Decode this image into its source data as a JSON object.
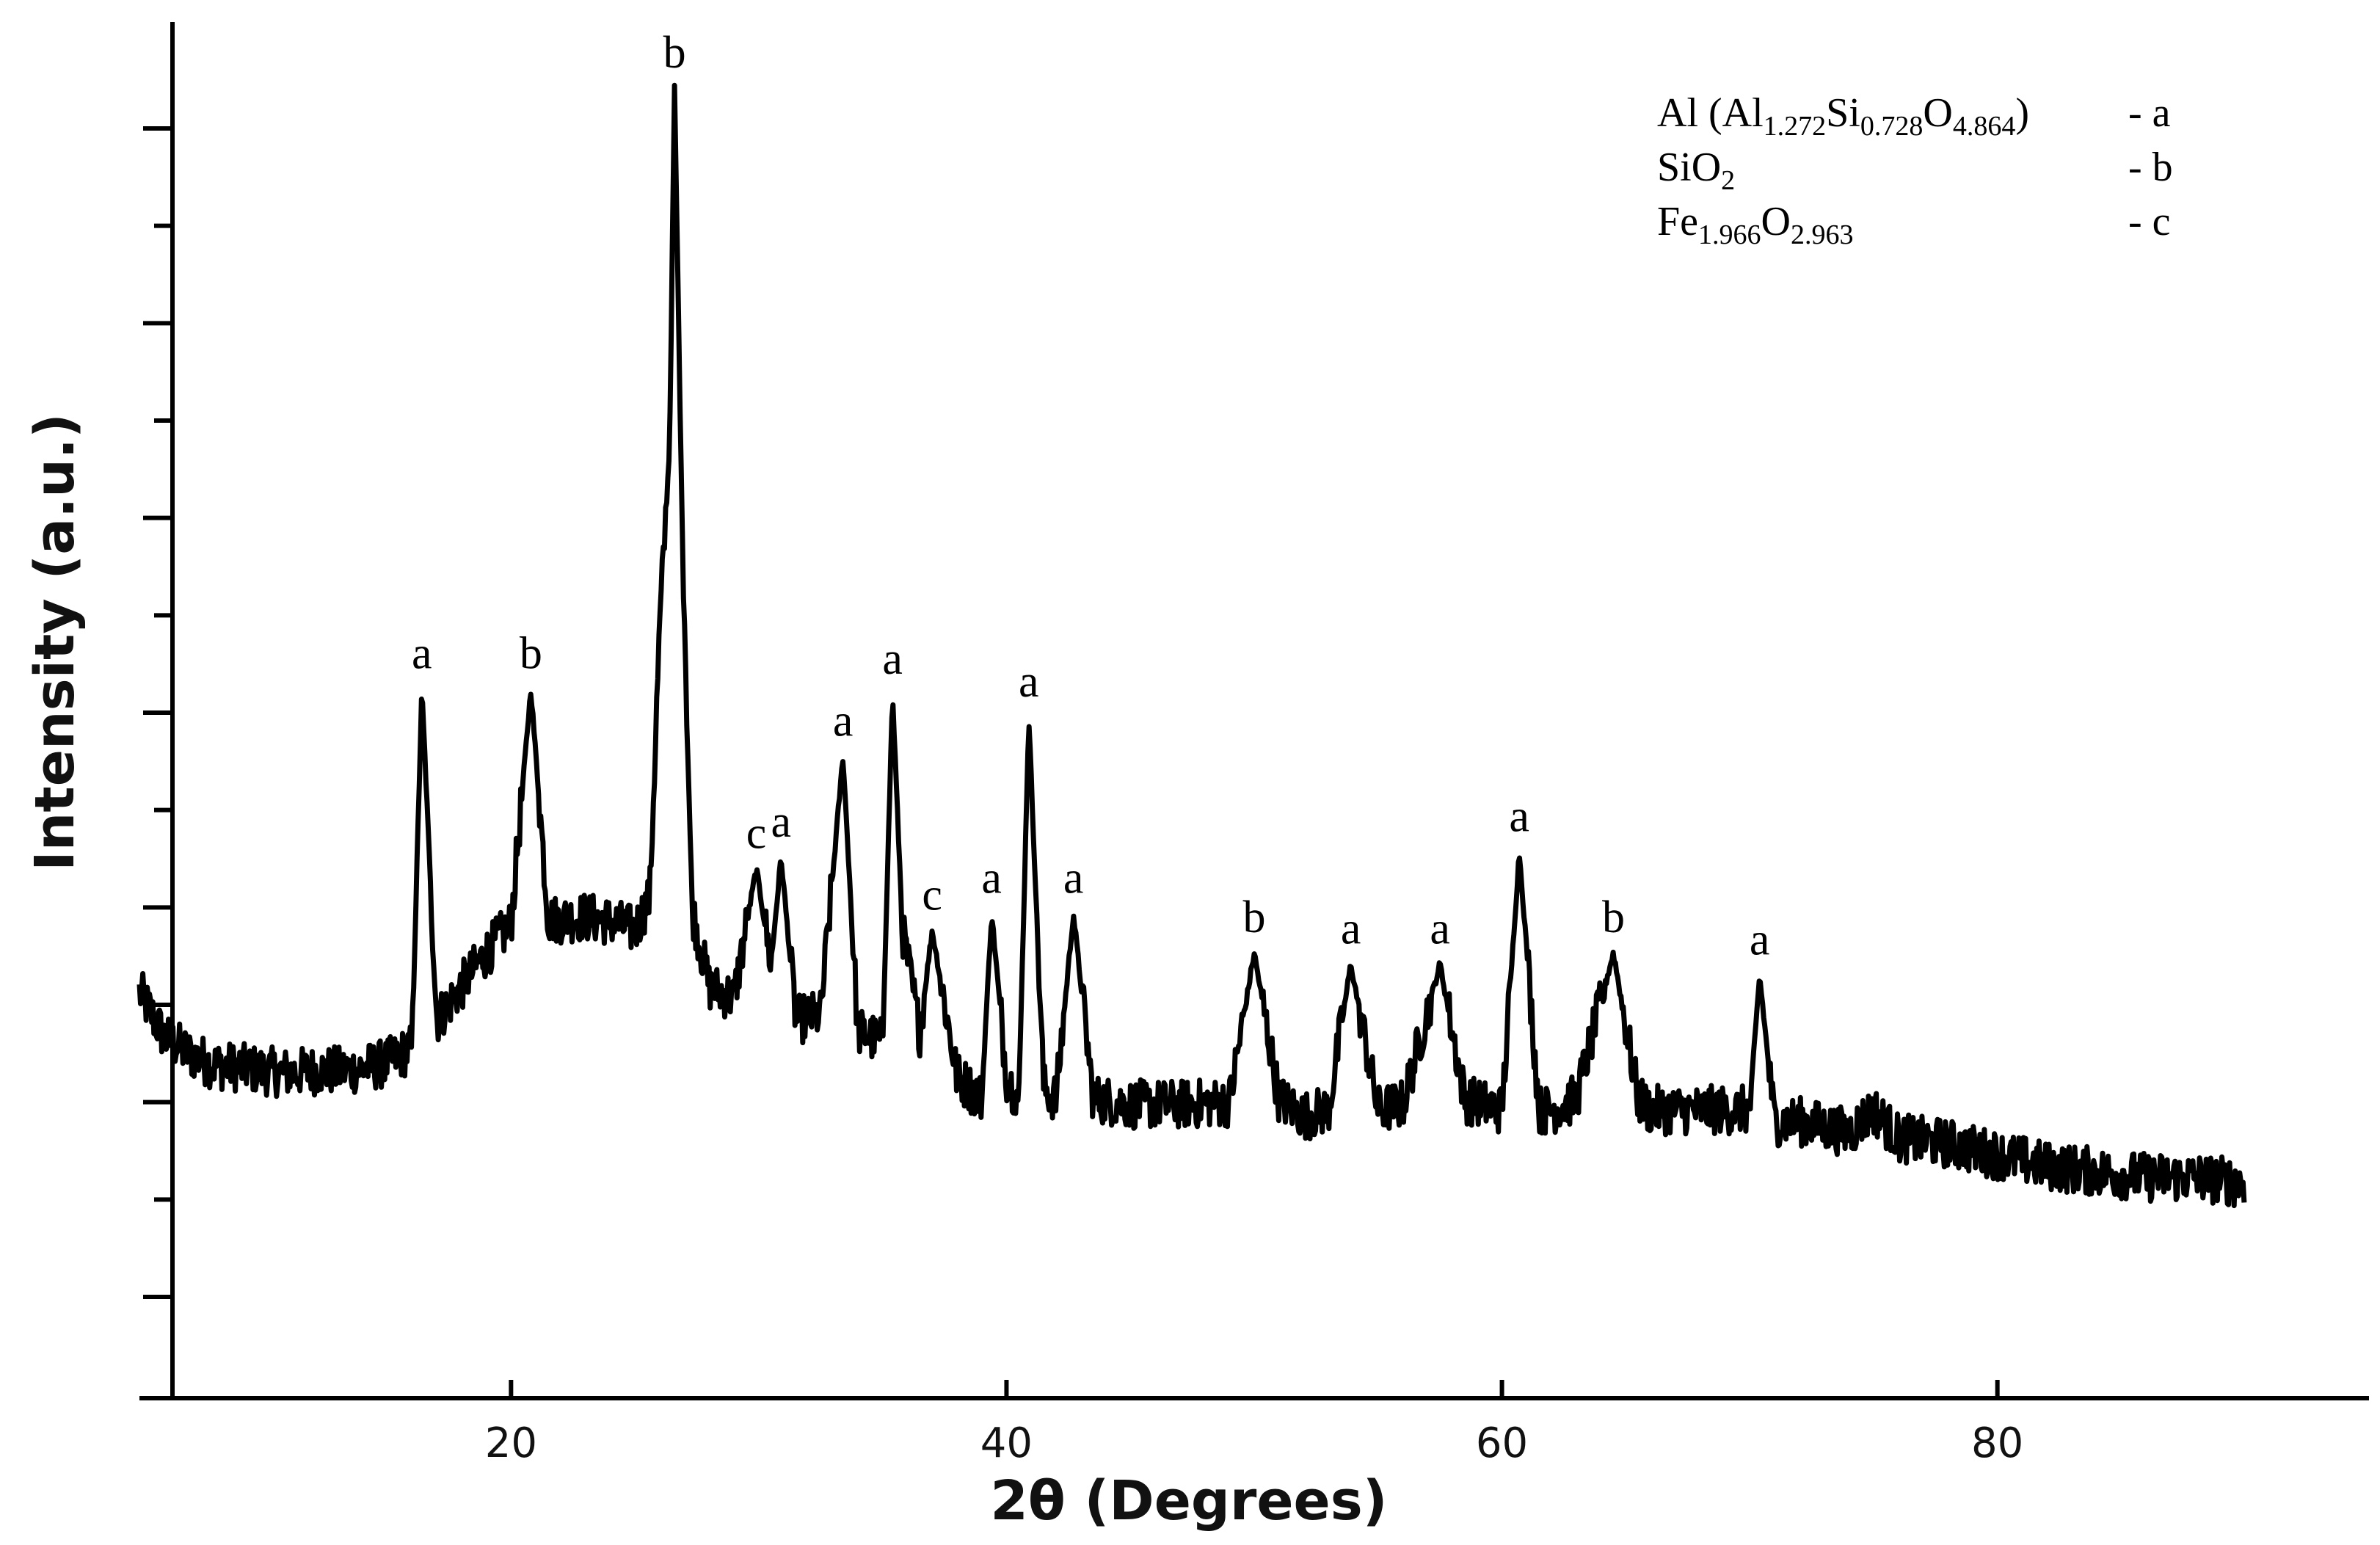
{
  "chart_data": {
    "type": "line",
    "title": "",
    "xlabel": "2θ (Degrees)",
    "ylabel": "Intensity (a.u.)",
    "xlim": [
      5,
      95
    ],
    "x_ticks": [
      20,
      40,
      60,
      80
    ],
    "x_tick_labels": [
      "20",
      "40",
      "60",
      "80"
    ],
    "y_ticks_count": 13,
    "y_tick_labels": false,
    "grid": false,
    "legend_position": "top-right",
    "legend": [
      {
        "label_main": "Al (Al",
        "sub1": "1.272",
        "mid1": "Si",
        "sub2": "0.728",
        "mid2": "O",
        "sub3": "4.864",
        "tail": ")",
        "key": "- a"
      },
      {
        "label_main": "SiO",
        "sub1": "2",
        "key": "- b"
      },
      {
        "label_main": "Fe",
        "sub1": "1.966",
        "mid1": "O",
        "sub2": "2.963",
        "key": "- c"
      }
    ],
    "peaks": [
      {
        "x": 16.4,
        "y": 0.465,
        "label": "a"
      },
      {
        "x": 20.8,
        "y": 0.465,
        "label": "b"
      },
      {
        "x": 26.6,
        "y": 1.0,
        "label": "b"
      },
      {
        "x": 29.9,
        "y": 0.305,
        "label": "c"
      },
      {
        "x": 30.9,
        "y": 0.315,
        "label": "a"
      },
      {
        "x": 33.4,
        "y": 0.405,
        "label": "a"
      },
      {
        "x": 35.4,
        "y": 0.46,
        "label": "a"
      },
      {
        "x": 37.0,
        "y": 0.25,
        "label": "c"
      },
      {
        "x": 39.4,
        "y": 0.265,
        "label": "a"
      },
      {
        "x": 40.9,
        "y": 0.44,
        "label": "a"
      },
      {
        "x": 42.7,
        "y": 0.265,
        "label": "a"
      },
      {
        "x": 50.0,
        "y": 0.23,
        "label": "b"
      },
      {
        "x": 53.9,
        "y": 0.22,
        "label": "a"
      },
      {
        "x": 57.5,
        "y": 0.22,
        "label": "a"
      },
      {
        "x": 60.7,
        "y": 0.32,
        "label": "a"
      },
      {
        "x": 64.5,
        "y": 0.23,
        "label": "b"
      },
      {
        "x": 70.4,
        "y": 0.21,
        "label": "a"
      }
    ],
    "series": [
      {
        "x": [
          5,
          6,
          7,
          8,
          9,
          10,
          11,
          12,
          13,
          14,
          15,
          16,
          16.4,
          17,
          18,
          19,
          20,
          20.8,
          21.5,
          22,
          23,
          24,
          25,
          25.6,
          26,
          26.2,
          26.4,
          26.6,
          26.9,
          27.3,
          28,
          29,
          29.9,
          30.5,
          30.9,
          31.5,
          32.5,
          33.4,
          34,
          35,
          35.4,
          35.8,
          36.5,
          37,
          38,
          39,
          39.4,
          40,
          40.5,
          40.9,
          41.5,
          42,
          42.7,
          43.5,
          45,
          47,
          49,
          50,
          51,
          52,
          53,
          53.9,
          55,
          56,
          57.5,
          58.5,
          60,
          60.7,
          61.5,
          62,
          63,
          64.5,
          65.5,
          66,
          68,
          70,
          70.4,
          71,
          72,
          74,
          75,
          76,
          78,
          80,
          82,
          84,
          86,
          88,
          90
        ],
        "y": [
          0.195,
          0.155,
          0.14,
          0.13,
          0.128,
          0.125,
          0.123,
          0.125,
          0.125,
          0.127,
          0.132,
          0.145,
          0.465,
          0.17,
          0.2,
          0.23,
          0.255,
          0.465,
          0.26,
          0.26,
          0.262,
          0.258,
          0.25,
          0.28,
          0.52,
          0.6,
          0.68,
          1.0,
          0.62,
          0.27,
          0.2,
          0.19,
          0.305,
          0.22,
          0.315,
          0.17,
          0.175,
          0.405,
          0.16,
          0.15,
          0.46,
          0.25,
          0.16,
          0.25,
          0.12,
          0.1,
          0.265,
          0.12,
          0.1,
          0.44,
          0.11,
          0.1,
          0.265,
          0.1,
          0.095,
          0.095,
          0.097,
          0.23,
          0.1,
          0.085,
          0.09,
          0.22,
          0.09,
          0.095,
          0.22,
          0.1,
          0.09,
          0.32,
          0.09,
          0.09,
          0.1,
          0.23,
          0.1,
          0.09,
          0.09,
          0.09,
          0.21,
          0.08,
          0.08,
          0.07,
          0.09,
          0.065,
          0.06,
          0.05,
          0.04,
          0.035,
          0.03,
          0.03,
          0.025
        ]
      }
    ]
  }
}
